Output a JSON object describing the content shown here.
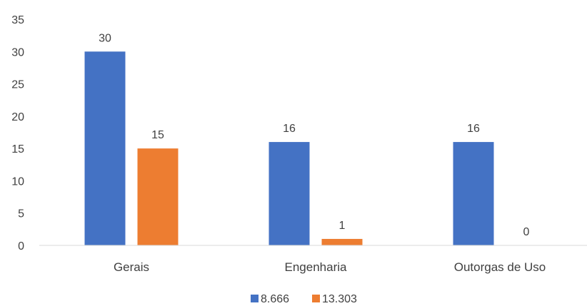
{
  "chart_data": {
    "type": "bar",
    "categories": [
      "Gerais",
      "Engenharia",
      "Outorgas de Uso"
    ],
    "series": [
      {
        "name": "8.666",
        "values": [
          30,
          16,
          16
        ],
        "color": "#4472C4"
      },
      {
        "name": "13.303",
        "values": [
          15,
          1,
          0
        ],
        "color": "#ED7D31"
      }
    ],
    "ylim": [
      0,
      35
    ],
    "yticks": [
      "0",
      "5",
      "10",
      "15",
      "20",
      "25",
      "30",
      "35"
    ],
    "title": "",
    "xlabel": "",
    "ylabel": "",
    "grid": false,
    "legend": "bottom-center",
    "data_labels": true
  }
}
